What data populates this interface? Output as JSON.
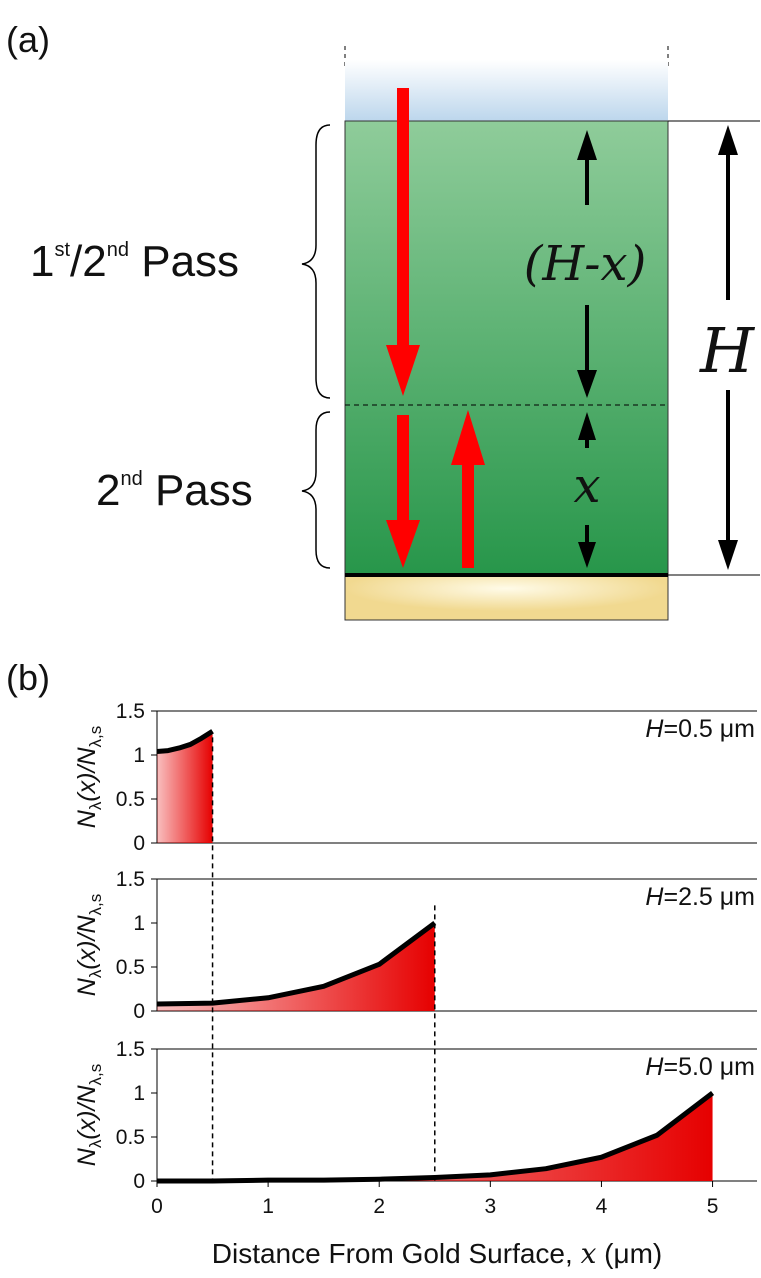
{
  "panel_labels": [
    "(a)",
    "(b)"
  ],
  "diagram": {
    "upper_brace_label": [
      "1",
      "st",
      "/2",
      "nd",
      " Pass"
    ],
    "lower_brace_label": [
      "2",
      "nd",
      " Pass"
    ],
    "upper_span": "(H-x)",
    "lower_span": "x",
    "total_span": "H"
  },
  "chart_data": [
    {
      "type": "area",
      "annotation": [
        "H",
        "=0.5 μm"
      ],
      "ylabel": [
        "N",
        "λ",
        "(x)/N",
        "λ,s"
      ],
      "color": "#e60000",
      "x": [
        0,
        0.1,
        0.2,
        0.3,
        0.4,
        0.5
      ],
      "values": [
        1.04,
        1.05,
        1.08,
        1.12,
        1.19,
        1.27
      ],
      "xlim": [
        0,
        5.4
      ],
      "ylim": [
        0,
        1.5
      ],
      "yticks": [
        0,
        0.5,
        1,
        1.5
      ]
    },
    {
      "type": "area",
      "annotation": [
        "H",
        "=2.5 μm"
      ],
      "ylabel": [
        "N",
        "λ",
        "(x)/N",
        "λ,s"
      ],
      "color": "#e60000",
      "x": [
        0,
        0.5,
        1,
        1.5,
        2,
        2.5
      ],
      "values": [
        0.08,
        0.09,
        0.15,
        0.28,
        0.53,
        1.0
      ],
      "xlim": [
        0,
        5.4
      ],
      "ylim": [
        0,
        1.5
      ],
      "yticks": [
        0,
        0.5,
        1,
        1.5
      ]
    },
    {
      "type": "area",
      "annotation": [
        "H",
        "=5.0 μm"
      ],
      "ylabel": [
        "N",
        "λ",
        "(x)/N",
        "λ,s"
      ],
      "color": "#e60000",
      "x": [
        0,
        0.5,
        1,
        1.5,
        2,
        2.5,
        3,
        3.5,
        4,
        4.5,
        5
      ],
      "values": [
        0.0,
        0.0,
        0.01,
        0.01,
        0.02,
        0.04,
        0.07,
        0.14,
        0.27,
        0.52,
        1.0
      ],
      "xlim": [
        0,
        5.4
      ],
      "ylim": [
        0,
        1.5
      ],
      "yticks": [
        0,
        0.5,
        1,
        1.5
      ],
      "xticks": [
        0,
        1,
        2,
        3,
        4,
        5
      ],
      "xlabel": [
        "Distance From Gold Surface, ",
        "x",
        " (μm)"
      ]
    }
  ]
}
